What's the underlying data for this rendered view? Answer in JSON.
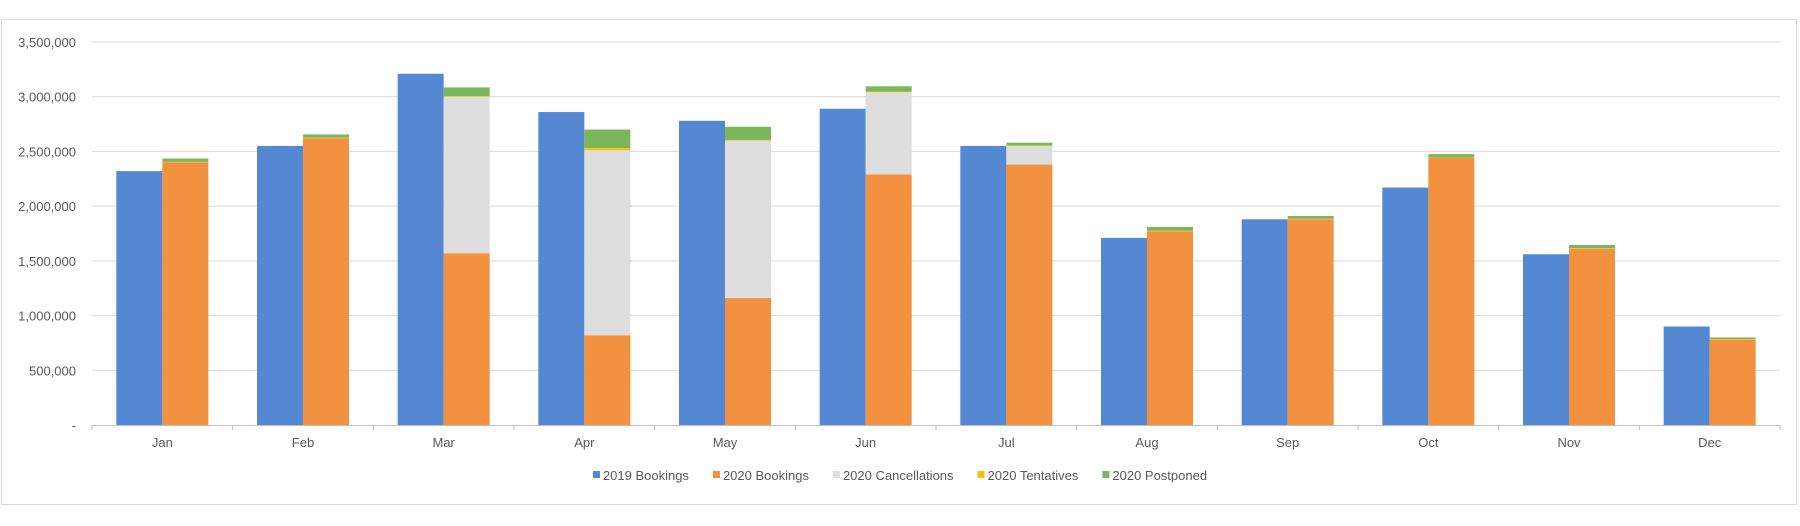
{
  "chart_data": {
    "type": "bar",
    "categories": [
      "Jan",
      "Feb",
      "Mar",
      "Apr",
      "May",
      "Jun",
      "Jul",
      "Aug",
      "Sep",
      "Oct",
      "Nov",
      "Dec"
    ],
    "ylim": [
      0,
      3500000
    ],
    "yticks": [
      0,
      500000,
      1000000,
      1500000,
      2000000,
      2500000,
      3000000,
      3500000
    ],
    "ytick_labels": [
      "-",
      "500,000",
      "1,000,000",
      "1,500,000",
      "2,000,000",
      "2,500,000",
      "3,000,000",
      "3,500,000"
    ],
    "grid": true,
    "legend_position": "bottom",
    "series": [
      {
        "name": "2019 Bookings",
        "color": "#5588D2",
        "stack": "2019",
        "values": [
          2320000,
          2550000,
          3210000,
          2860000,
          2780000,
          2890000,
          2550000,
          1710000,
          1880000,
          2170000,
          1560000,
          900000
        ]
      },
      {
        "name": "2020 Bookings",
        "color": "#F2913F",
        "stack": "2020",
        "values": [
          2400000,
          2620000,
          1570000,
          820000,
          1160000,
          2290000,
          2380000,
          1770000,
          1880000,
          2440000,
          1610000,
          780000
        ]
      },
      {
        "name": "2020 Cancellations",
        "color": "#DEDEDE",
        "stack": "2020",
        "values": [
          0,
          0,
          1430000,
          1690000,
          1440000,
          750000,
          170000,
          0,
          0,
          0,
          0,
          0
        ]
      },
      {
        "name": "2020 Tentatives",
        "color": "#FFC000",
        "stack": "2020",
        "values": [
          5000,
          5000,
          5000,
          20000,
          5000,
          5000,
          5000,
          5000,
          5000,
          5000,
          5000,
          5000
        ]
      },
      {
        "name": "2020 Postponed",
        "color": "#7CB65A",
        "stack": "2020",
        "values": [
          30000,
          30000,
          80000,
          170000,
          120000,
          50000,
          25000,
          35000,
          25000,
          30000,
          30000,
          15000
        ]
      }
    ]
  }
}
